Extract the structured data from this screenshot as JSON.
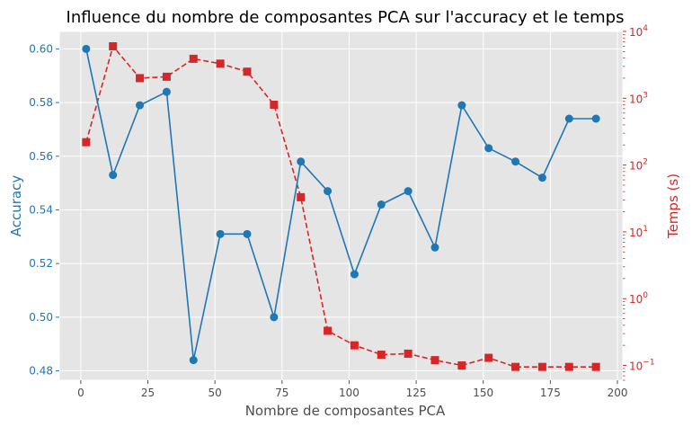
{
  "chart_data": {
    "type": "line",
    "title": "Influence du nombre de composantes PCA sur l'accuracy et le temps",
    "xlabel": "Nombre de composantes PCA",
    "x": [
      2,
      12,
      22,
      32,
      42,
      52,
      62,
      72,
      82,
      92,
      102,
      112,
      122,
      132,
      142,
      152,
      162,
      172,
      182,
      192
    ],
    "xlim": [
      -8,
      202
    ],
    "xticks": [
      0,
      25,
      50,
      75,
      100,
      125,
      150,
      175,
      200
    ],
    "grid": true,
    "series": [
      {
        "name": "Accuracy",
        "axis": "left",
        "ylabel": "Accuracy",
        "color": "#1f77b4",
        "linestyle": "solid",
        "marker": "circle",
        "ylim": [
          0.4765,
          0.6065
        ],
        "yticks": [
          "0.48",
          "0.50",
          "0.52",
          "0.54",
          "0.56",
          "0.58",
          "0.60"
        ],
        "values": [
          0.6,
          0.553,
          0.579,
          0.584,
          0.484,
          0.531,
          0.531,
          0.5,
          0.558,
          0.547,
          0.516,
          0.542,
          0.547,
          0.526,
          0.579,
          0.563,
          0.558,
          0.552,
          0.574,
          0.574
        ]
      },
      {
        "name": "Temps (s)",
        "axis": "right",
        "ylabel": "Temps (s)",
        "scale": "log",
        "color": "#d62728",
        "linestyle": "dashed",
        "marker": "square",
        "ylim": [
          0.06,
          10000
        ],
        "yticks": [
          {
            "base": "10",
            "exp": "−1",
            "value": 0.1
          },
          {
            "base": "10",
            "exp": "0",
            "value": 1
          },
          {
            "base": "10",
            "exp": "1",
            "value": 10
          },
          {
            "base": "10",
            "exp": "2",
            "value": 100
          },
          {
            "base": "10",
            "exp": "3",
            "value": 1000
          },
          {
            "base": "10",
            "exp": "4",
            "value": 10000
          }
        ],
        "values": [
          220,
          6000,
          2000,
          2100,
          3900,
          3300,
          2500,
          800,
          33,
          0.33,
          0.2,
          0.145,
          0.15,
          0.12,
          0.1,
          0.13,
          0.095,
          0.095,
          0.095,
          0.095
        ]
      }
    ],
    "colors": {
      "plot_bg": "#e5e5e5",
      "grid": "#ffffff",
      "text": "#4d4d4d"
    }
  }
}
